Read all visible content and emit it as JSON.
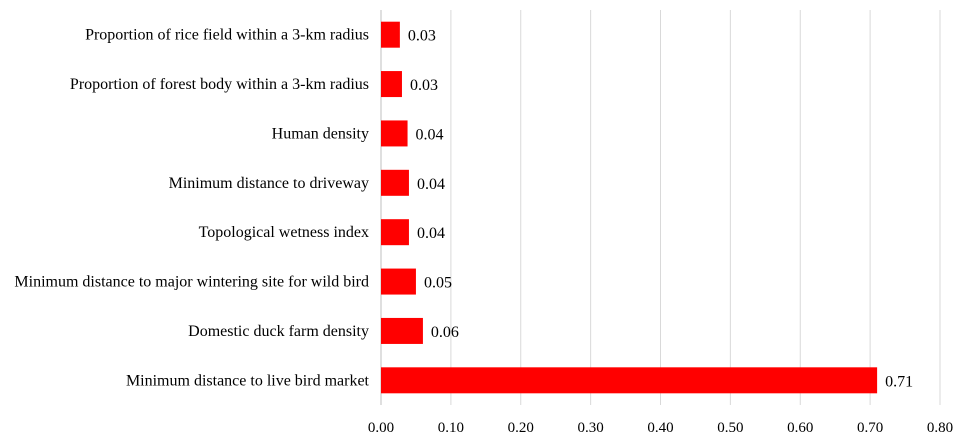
{
  "chart_data": {
    "type": "bar",
    "orientation": "horizontal",
    "categories": [
      "Proportion of rice field within a 3-km radius",
      "Proportion of forest body within a 3-km radius",
      "Human density",
      "Minimum distance to driveway ",
      "Topological wetness index",
      "Minimum distance to major wintering site for wild bird ",
      "Domestic duck farm density",
      "Minimum distance to live bird market"
    ],
    "values": [
      0.027,
      0.03,
      0.038,
      0.04,
      0.04,
      0.05,
      0.06,
      0.71
    ],
    "data_labels": [
      "0.03",
      "0.03",
      "0.04",
      "0.04",
      "0.04",
      "0.05",
      "0.06",
      "0.71"
    ],
    "xticks": [
      "0.00",
      "0.10",
      "0.20",
      "0.30",
      "0.40",
      "0.50",
      "0.60",
      "0.70",
      "0.80"
    ],
    "xlim": [
      0,
      0.8
    ],
    "title": "",
    "xlabel": "",
    "ylabel": "",
    "grid": "vertical",
    "legend": "none",
    "bar_color": "#ff0000",
    "grid_color": "#d9d9d9"
  }
}
